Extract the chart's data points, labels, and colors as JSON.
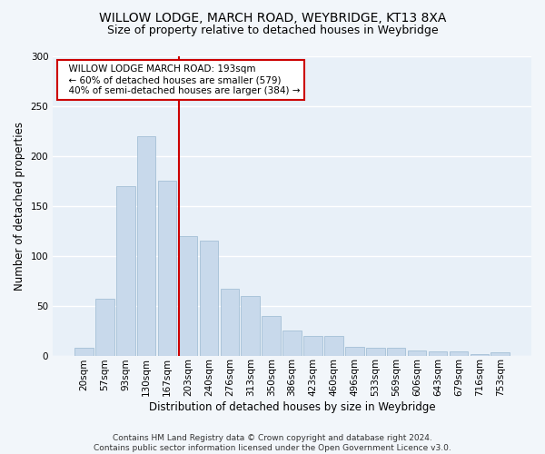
{
  "title1": "WILLOW LODGE, MARCH ROAD, WEYBRIDGE, KT13 8XA",
  "title2": "Size of property relative to detached houses in Weybridge",
  "xlabel": "Distribution of detached houses by size in Weybridge",
  "ylabel": "Number of detached properties",
  "bar_labels": [
    "20sqm",
    "57sqm",
    "93sqm",
    "130sqm",
    "167sqm",
    "203sqm",
    "240sqm",
    "276sqm",
    "313sqm",
    "350sqm",
    "386sqm",
    "423sqm",
    "460sqm",
    "496sqm",
    "533sqm",
    "569sqm",
    "606sqm",
    "643sqm",
    "679sqm",
    "716sqm",
    "753sqm"
  ],
  "bar_values": [
    8,
    57,
    170,
    220,
    175,
    120,
    115,
    67,
    60,
    40,
    25,
    20,
    20,
    9,
    8,
    8,
    5,
    4,
    4,
    1,
    3
  ],
  "bar_color": "#c8d9eb",
  "bar_edge_color": "#9ab8d0",
  "fig_bg_color": "#f2f6fa",
  "ax_bg_color": "#e8f0f8",
  "grid_color": "#ffffff",
  "annotation_text": "  WILLOW LODGE MARCH ROAD: 193sqm\n  ← 60% of detached houses are smaller (579)\n  40% of semi-detached houses are larger (384) →",
  "vline_color": "#cc0000",
  "annotation_box_color": "#ffffff",
  "annotation_box_edge": "#cc0000",
  "ylim": [
    0,
    300
  ],
  "yticks": [
    0,
    50,
    100,
    150,
    200,
    250,
    300
  ],
  "footnote": "Contains HM Land Registry data © Crown copyright and database right 2024.\nContains public sector information licensed under the Open Government Licence v3.0.",
  "title1_fontsize": 10,
  "title2_fontsize": 9,
  "xlabel_fontsize": 8.5,
  "ylabel_fontsize": 8.5,
  "tick_fontsize": 7.5,
  "annotation_fontsize": 7.5,
  "footnote_fontsize": 6.5
}
